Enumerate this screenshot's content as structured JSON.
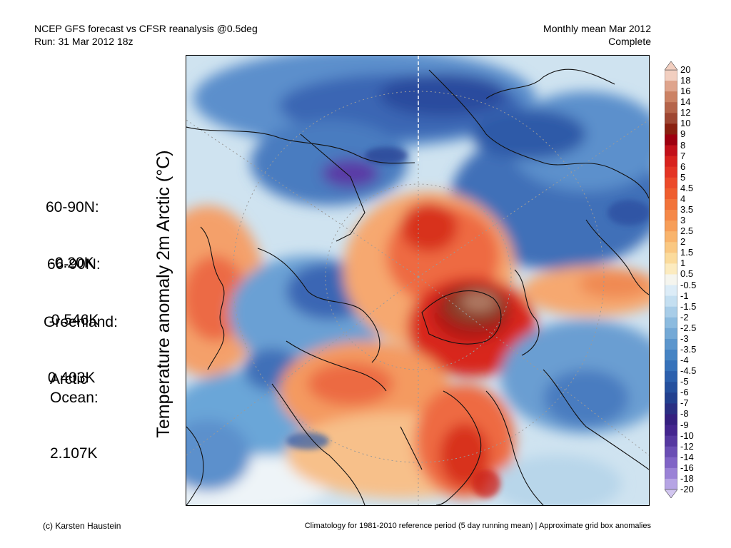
{
  "header": {
    "line1": "NCEP GFS forecast vs CFSR reanalysis @0.5deg",
    "line2": "Run: 31 Mar 2012 18z",
    "right1": "Monthly mean Mar 2012",
    "right2": "Complete"
  },
  "axis_label": "Temperature anomaly 2m Arctic (°C)",
  "stats": [
    {
      "label": "60-90N:",
      "value": " -0.20K"
    },
    {
      "label": "66-90N:",
      "value": " 0.546K"
    },
    {
      "label": "Greenland:",
      "value": " 0.403K"
    },
    {
      "label": "Arctic\nOcean:",
      "value": "2.107K"
    }
  ],
  "colorbar": {
    "labels": [
      "20",
      "18",
      "16",
      "14",
      "12",
      "10",
      "9",
      "8",
      "7",
      "6",
      "5",
      "4.5",
      "4",
      "3.5",
      "3",
      "2.5",
      "2",
      "1.5",
      "1",
      "0.5",
      "-0.5",
      "-1",
      "-1.5",
      "-2",
      "-2.5",
      "-3",
      "-3.5",
      "-4",
      "-4.5",
      "-5",
      "-6",
      "-7",
      "-8",
      "-9",
      "-10",
      "-12",
      "-14",
      "-16",
      "-18",
      "-20"
    ],
    "colors": [
      "#f2cfc0",
      "#dfa48c",
      "#cc8264",
      "#b5644a",
      "#9e4632",
      "#8a2010",
      "#9e0010",
      "#c2101a",
      "#d8221e",
      "#e43424",
      "#ec4a2a",
      "#ef5d2e",
      "#f2733a",
      "#f58848",
      "#f79e58",
      "#f9b46c",
      "#fac882",
      "#fbdb9c",
      "#fcebbf",
      "#f5f5ee",
      "#dcecf7",
      "#c4dff1",
      "#a8cde8",
      "#8cbbdf",
      "#74a9d6",
      "#5c96cd",
      "#4684c4",
      "#3672ba",
      "#2c60ad",
      "#25509e",
      "#22408f",
      "#2a2f83",
      "#352080",
      "#44268f",
      "#5538a0",
      "#6a4eb4",
      "#8064c6",
      "#9a82d6",
      "#b6a4e4",
      "#d2c6f0"
    ]
  },
  "footer": {
    "left": "(c) Karsten Haustein",
    "right": "Climatology for 1981-2010 reference period (5 day running mean) | Approximate grid box anomalies"
  }
}
